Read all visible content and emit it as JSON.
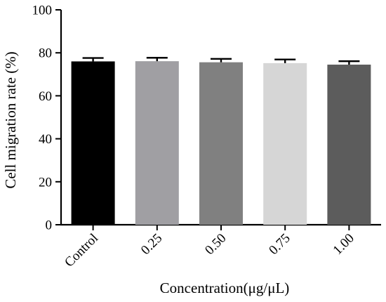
{
  "chart_data": {
    "type": "bar",
    "categories": [
      "Control",
      "0.25",
      "0.50",
      "0.75",
      "1.00"
    ],
    "values": [
      76.0,
      76.1,
      75.6,
      75.2,
      74.5
    ],
    "errors": [
      1.6,
      1.6,
      1.6,
      1.7,
      1.6
    ],
    "colors": [
      "#000000",
      "#a09fa3",
      "#808080",
      "#d6d6d6",
      "#5c5c5c"
    ],
    "title": "",
    "xlabel": "Concentration(μg/μL)",
    "ylabel": "Cell migration rate (%)",
    "ylim": [
      0,
      100
    ],
    "yticks": [
      0,
      20,
      40,
      60,
      80,
      100
    ],
    "grid": false,
    "legend": "none"
  }
}
